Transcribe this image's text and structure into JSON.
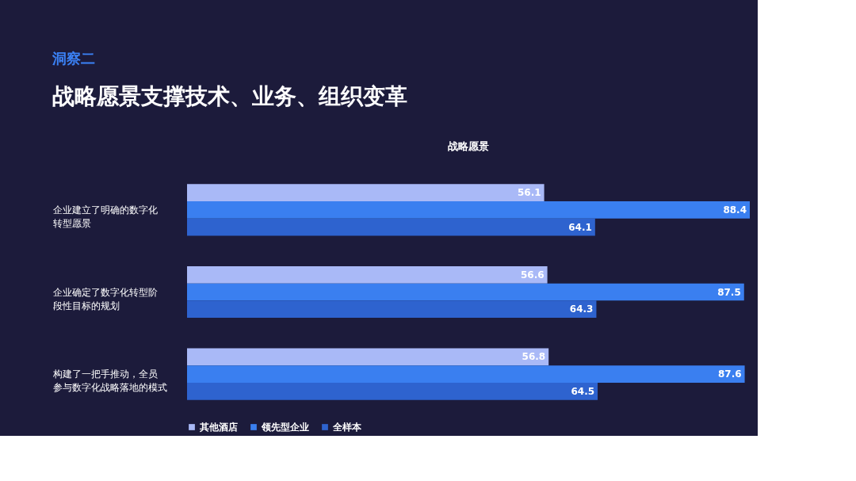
{
  "chart_data": {
    "type": "bar",
    "orientation": "horizontal",
    "data_labels": true,
    "legend": "bottom",
    "annotations": [
      "洞察二"
    ],
    "title": "战略愿景支撑技术、业务、组织变革",
    "subtitle": "战略愿景",
    "categories": [
      "企业建立了明确的数字化转型愿景",
      "企业确定了数字化转型阶段性目标的规划",
      "构建了一把手推动，全员参与数字化战略落地的模式"
    ],
    "series": [
      {
        "name": "其他酒店",
        "color": "#a9b9f7",
        "values": [
          56.1,
          56.6,
          56.8
        ]
      },
      {
        "name": "领先型企业",
        "color": "#3a7ff0",
        "values": [
          88.4,
          87.5,
          87.6
        ]
      },
      {
        "name": "全样本",
        "color": "#2e63cf",
        "values": [
          64.1,
          64.3,
          64.5
        ]
      }
    ]
  }
}
